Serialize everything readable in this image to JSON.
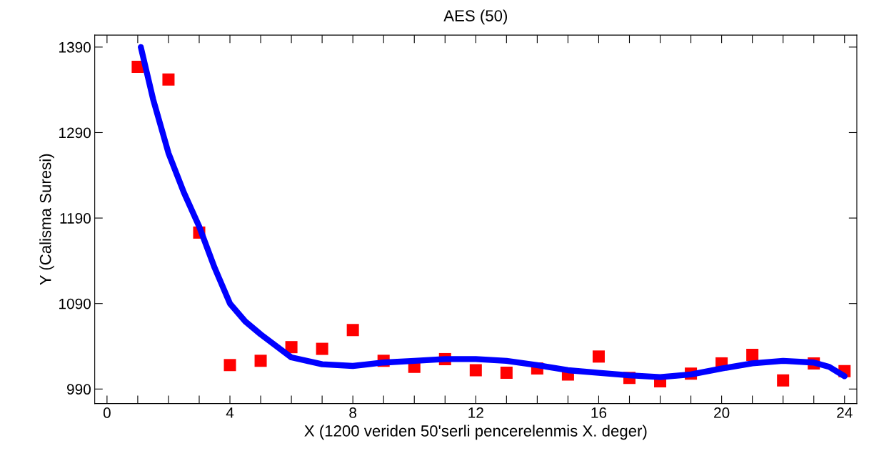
{
  "chart_data": {
    "type": "scatter",
    "title": "AES (50)",
    "xlabel": "X (1200 veriden 50'serli pencerelenmis X. deger)",
    "ylabel": "Y (Calisma Suresi)",
    "series": [
      {
        "color": "#ff0000",
        "marker": "square",
        "x": [
          1,
          2,
          3,
          4,
          5,
          6,
          7,
          8,
          9,
          10,
          11,
          12,
          13,
          14,
          15,
          16,
          17,
          18,
          19,
          20,
          21,
          22,
          23,
          24
        ],
        "values": [
          1367,
          1352,
          1173,
          1018,
          1023,
          1039,
          1037,
          1059,
          1023,
          1016,
          1025,
          1012,
          1009,
          1014,
          1007,
          1028,
          1003,
          999,
          1008,
          1020,
          1030,
          1000,
          1020,
          1011
        ]
      },
      {
        "type": "line",
        "color": "#0000ff",
        "marker": "none",
        "x": [
          1.1,
          1.5,
          2,
          2.5,
          3,
          3.5,
          4,
          4.5,
          5,
          6,
          7,
          8,
          9,
          10,
          11,
          12,
          13,
          14,
          15,
          16,
          17,
          18,
          19,
          20,
          21,
          22,
          23,
          23.5,
          24
        ],
        "values": [
          1390,
          1329,
          1266,
          1220,
          1180,
          1132,
          1090,
          1069,
          1054,
          1027,
          1019,
          1017,
          1021,
          1023,
          1025,
          1025,
          1023,
          1018,
          1012,
          1009,
          1006,
          1004,
          1007,
          1014,
          1020,
          1023,
          1021,
          1016,
          1005
        ]
      }
    ],
    "xlim": [
      -0.4,
      24.4
    ],
    "ylim": [
      973,
      1404
    ],
    "xticks": [
      0,
      {
        "value": 1,
        "label": null
      },
      {
        "value": 2,
        "label": null
      },
      {
        "value": 3,
        "label": null
      },
      4,
      {
        "value": 5,
        "label": null
      },
      {
        "value": 6,
        "label": null
      },
      {
        "value": 7,
        "label": null
      },
      8,
      {
        "value": 9,
        "label": null
      },
      {
        "value": 10,
        "label": null
      },
      {
        "value": 11,
        "label": null
      },
      12,
      {
        "value": 13,
        "label": null
      },
      {
        "value": 14,
        "label": null
      },
      {
        "value": 15,
        "label": null
      },
      16,
      {
        "value": 17,
        "label": null
      },
      {
        "value": 18,
        "label": null
      },
      {
        "value": 19,
        "label": null
      },
      20,
      {
        "value": 21,
        "label": null
      },
      {
        "value": 22,
        "label": null
      },
      {
        "value": 23,
        "label": null
      },
      24
    ],
    "yticks": [
      990,
      1090,
      1190,
      1290,
      1390
    ],
    "grid": false,
    "legend": false
  }
}
